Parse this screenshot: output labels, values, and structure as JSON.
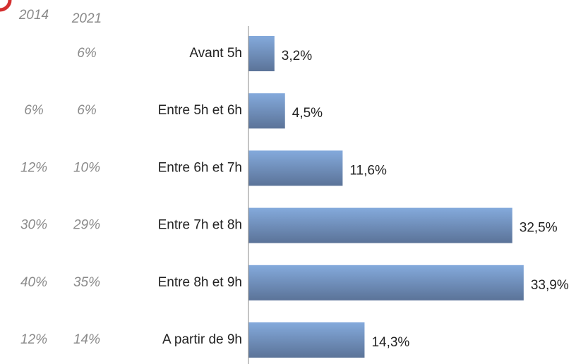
{
  "chart_data": {
    "type": "bar",
    "categories": [
      "Avant 5h",
      "Entre 5h et 6h",
      "Entre 6h et 7h",
      "Entre 7h et 8h",
      "Entre 8h et 9h",
      "A partir de 9h"
    ],
    "values": [
      3.2,
      4.5,
      11.6,
      32.5,
      33.9,
      14.3
    ],
    "value_labels": [
      "3,2%",
      "4,5%",
      "11,6%",
      "32,5%",
      "33,9%",
      "14,3%"
    ],
    "xlim": [
      0,
      40
    ],
    "color": "#6f8fbf",
    "side_columns": [
      {
        "name": "2014",
        "labels": [
          null,
          "6%",
          "12%",
          "30%",
          "40%",
          "12%"
        ]
      },
      {
        "name": "2021",
        "labels": [
          "6%",
          "6%",
          "10%",
          "29%",
          "35%",
          "14%"
        ]
      }
    ]
  }
}
